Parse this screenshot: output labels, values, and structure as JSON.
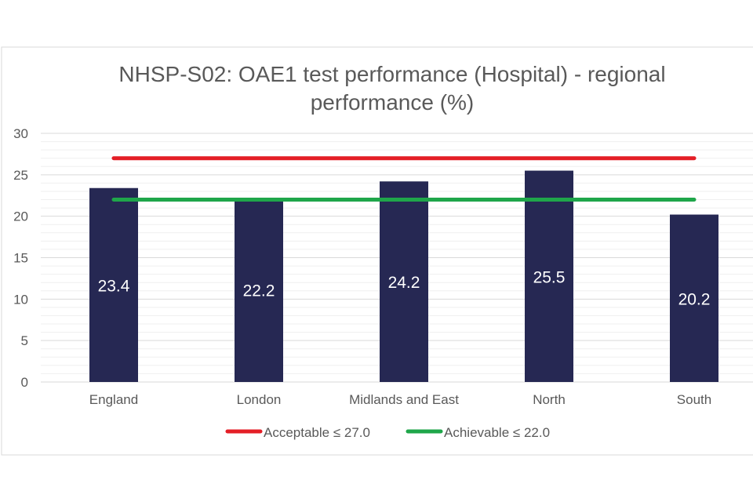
{
  "chart_data": {
    "type": "bar",
    "title": "NHSP-S02: OAE1 test performance (Hospital) -  regional performance (%)",
    "title_lines": [
      "NHSP-S02: OAE1 test performance (Hospital) -  regional",
      "performance (%)"
    ],
    "categories": [
      "England",
      "London",
      "Midlands and East",
      "North",
      "South"
    ],
    "values": [
      23.4,
      22.2,
      24.2,
      25.5,
      20.2
    ],
    "data_labels": [
      "23.4",
      "22.2",
      "24.2",
      "25.5",
      "20.2"
    ],
    "ylim": [
      0,
      30
    ],
    "yticks": [
      "0",
      "5",
      "10",
      "15",
      "20",
      "25",
      "30"
    ],
    "grid": true,
    "xlabel": "",
    "ylabel": "",
    "reference_lines": [
      {
        "name": "Acceptable ≤ 27.0",
        "value": 27.0,
        "color": "#e41e26"
      },
      {
        "name": "Achievable ≤ 22.0",
        "value": 22.0,
        "color": "#1fa64a"
      }
    ],
    "legend_position": "bottom",
    "bar_color": "#262853"
  }
}
